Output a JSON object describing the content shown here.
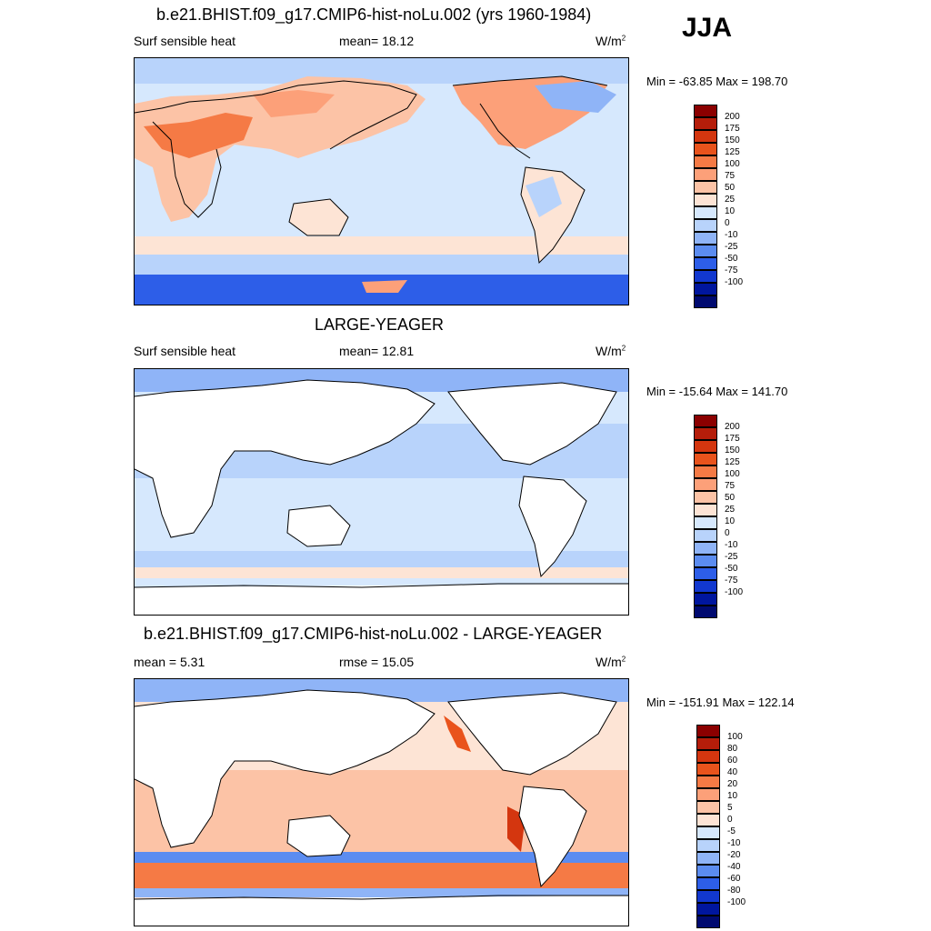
{
  "season": "JJA",
  "units_base": "W/m",
  "units_exp": "2",
  "panels": [
    {
      "title": "b.e21.BHIST.f09_g17.CMIP6-hist-noLu.002 (yrs 1960-1984)",
      "left_label": "Surf sensible heat",
      "center_label": "mean=  18.12",
      "minmax": "Min = -63.85 Max = 198.70",
      "colorbar_labels": [
        "200",
        "175",
        "150",
        "125",
        "100",
        "75",
        "50",
        "25",
        "10",
        "0",
        "-10",
        "-25",
        "-50",
        "-75",
        "-100"
      ]
    },
    {
      "title": "LARGE-YEAGER",
      "left_label": "Surf sensible heat",
      "center_label": "mean=  12.81",
      "minmax": "Min = -15.64 Max = 141.70",
      "colorbar_labels": [
        "200",
        "175",
        "150",
        "125",
        "100",
        "75",
        "50",
        "25",
        "10",
        "0",
        "-10",
        "-25",
        "-50",
        "-75",
        "-100"
      ]
    },
    {
      "title": "b.e21.BHIST.f09_g17.CMIP6-hist-noLu.002 - LARGE-YEAGER",
      "left_label": "mean =   5.31",
      "center_label": "rmse =  15.05",
      "minmax": "Min = -151.91 Max = 122.14",
      "colorbar_labels": [
        "100",
        "80",
        "60",
        "40",
        "20",
        "10",
        "5",
        "0",
        "-5",
        "-10",
        "-20",
        "-40",
        "-60",
        "-80",
        "-100"
      ]
    }
  ],
  "colors": {
    "scale": [
      "#8b0000",
      "#b51d0a",
      "#d4360f",
      "#e9531c",
      "#f57a45",
      "#fca079",
      "#fcc3a6",
      "#fde4d5",
      "#d6e8fd",
      "#b8d3fb",
      "#8fb4f7",
      "#5b8cf0",
      "#2d5ee8",
      "#1238cf",
      "#00169e",
      "#000a70"
    ],
    "land": "#ffffff",
    "coast": "#000000"
  }
}
